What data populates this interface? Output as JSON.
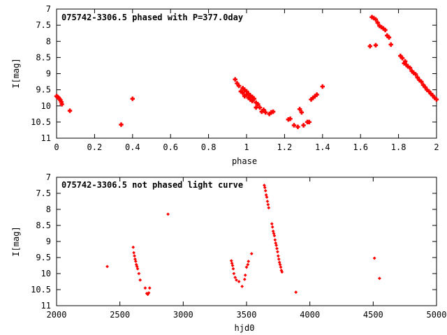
{
  "chart_data": [
    {
      "type": "scatter",
      "title": "075742-3306.5 phased with P=377.0day",
      "xlabel": "phase",
      "ylabel": "I[mag]",
      "xlim": [
        0,
        2
      ],
      "ylim": [
        7,
        11
      ],
      "y_inverted": true,
      "x_ticks": [
        "0",
        "0.2",
        "0.4",
        "0.6",
        "0.8",
        "1",
        "1.2",
        "1.4",
        "1.6",
        "1.8",
        "2"
      ],
      "y_ticks": [
        "7",
        "7.5",
        "8",
        "8.5",
        "9",
        "9.5",
        "10",
        "10.5",
        "11"
      ],
      "grid": false,
      "marker_color": "#ff0000",
      "series": [
        {
          "points": [
            [
              0.0,
              9.7
            ],
            [
              0.005,
              9.72
            ],
            [
              0.01,
              9.75
            ],
            [
              0.015,
              9.78
            ],
            [
              0.02,
              9.82
            ],
            [
              0.025,
              9.88
            ],
            [
              0.028,
              9.95
            ],
            [
              0.07,
              10.15
            ],
            [
              0.34,
              10.58
            ],
            [
              0.4,
              9.78
            ],
            [
              0.94,
              9.18
            ],
            [
              0.95,
              9.3
            ],
            [
              0.96,
              9.38
            ],
            [
              0.97,
              9.55
            ],
            [
              0.98,
              9.6
            ],
            [
              0.98,
              9.45
            ],
            [
              0.99,
              9.5
            ],
            [
              0.99,
              9.7
            ],
            [
              1.0,
              9.65
            ],
            [
              1.0,
              9.55
            ],
            [
              1.01,
              9.75
            ],
            [
              1.01,
              9.62
            ],
            [
              1.02,
              9.8
            ],
            [
              1.02,
              9.68
            ],
            [
              1.03,
              9.72
            ],
            [
              1.03,
              9.85
            ],
            [
              1.04,
              9.78
            ],
            [
              1.05,
              9.9
            ],
            [
              1.05,
              10.05
            ],
            [
              1.06,
              9.95
            ],
            [
              1.07,
              10.05
            ],
            [
              1.08,
              10.18
            ],
            [
              1.09,
              10.12
            ],
            [
              1.1,
              10.2
            ],
            [
              1.12,
              10.25
            ],
            [
              1.13,
              10.2
            ],
            [
              1.14,
              10.18
            ],
            [
              1.22,
              10.42
            ],
            [
              1.23,
              10.4
            ],
            [
              1.25,
              10.6
            ],
            [
              1.27,
              10.65
            ],
            [
              1.28,
              10.1
            ],
            [
              1.29,
              10.2
            ],
            [
              1.3,
              10.6
            ],
            [
              1.32,
              10.5
            ],
            [
              1.33,
              10.5
            ],
            [
              1.34,
              9.8
            ],
            [
              1.35,
              9.75
            ],
            [
              1.36,
              9.7
            ],
            [
              1.37,
              9.65
            ],
            [
              1.4,
              9.4
            ],
            [
              1.65,
              8.15
            ],
            [
              1.66,
              7.25
            ],
            [
              1.67,
              7.28
            ],
            [
              1.68,
              8.12
            ],
            [
              1.68,
              7.32
            ],
            [
              1.69,
              7.42
            ],
            [
              1.7,
              7.52
            ],
            [
              1.71,
              7.56
            ],
            [
              1.72,
              7.6
            ],
            [
              1.73,
              7.65
            ],
            [
              1.74,
              7.82
            ],
            [
              1.75,
              7.88
            ],
            [
              1.76,
              8.1
            ],
            [
              1.81,
              8.45
            ],
            [
              1.82,
              8.52
            ],
            [
              1.83,
              8.68
            ],
            [
              1.835,
              8.62
            ],
            [
              1.84,
              8.72
            ],
            [
              1.85,
              8.78
            ],
            [
              1.86,
              8.82
            ],
            [
              1.87,
              8.92
            ],
            [
              1.88,
              8.98
            ],
            [
              1.89,
              9.02
            ],
            [
              1.9,
              9.12
            ],
            [
              1.91,
              9.2
            ],
            [
              1.92,
              9.25
            ],
            [
              1.93,
              9.35
            ],
            [
              1.94,
              9.42
            ],
            [
              1.95,
              9.5
            ],
            [
              1.96,
              9.55
            ],
            [
              1.97,
              9.62
            ],
            [
              1.98,
              9.68
            ],
            [
              1.99,
              9.75
            ],
            [
              2.0,
              9.8
            ]
          ]
        }
      ]
    },
    {
      "type": "scatter",
      "title": "075742-3306.5 not phased light curve",
      "xlabel": "hjd0",
      "ylabel": "I[mag]",
      "xlim": [
        2000,
        5000
      ],
      "ylim": [
        7,
        11
      ],
      "y_inverted": true,
      "x_ticks": [
        "2000",
        "2500",
        "3000",
        "3500",
        "4000",
        "4500",
        "5000"
      ],
      "y_ticks": [
        "7",
        "7.5",
        "8",
        "8.5",
        "9",
        "9.5",
        "10",
        "10.5",
        "11"
      ],
      "grid": false,
      "marker_color": "#ff0000",
      "series": [
        {
          "points": [
            [
              2400,
              9.78
            ],
            [
              2605,
              9.18
            ],
            [
              2610,
              9.35
            ],
            [
              2615,
              9.45
            ],
            [
              2620,
              9.55
            ],
            [
              2625,
              9.62
            ],
            [
              2630,
              9.72
            ],
            [
              2635,
              9.78
            ],
            [
              2640,
              9.85
            ],
            [
              2650,
              10.0
            ],
            [
              2660,
              10.2
            ],
            [
              2700,
              10.45
            ],
            [
              2712,
              10.62
            ],
            [
              2720,
              10.65
            ],
            [
              2728,
              10.6
            ],
            [
              2735,
              10.45
            ],
            [
              2880,
              8.15
            ],
            [
              3380,
              9.6
            ],
            [
              3385,
              9.68
            ],
            [
              3390,
              9.75
            ],
            [
              3395,
              9.85
            ],
            [
              3400,
              10.0
            ],
            [
              3410,
              10.12
            ],
            [
              3420,
              10.2
            ],
            [
              3440,
              10.25
            ],
            [
              3465,
              10.4
            ],
            [
              3485,
              10.18
            ],
            [
              3490,
              10.05
            ],
            [
              3500,
              9.8
            ],
            [
              3510,
              9.72
            ],
            [
              3515,
              9.62
            ],
            [
              3540,
              9.38
            ],
            [
              3640,
              7.25
            ],
            [
              3645,
              7.32
            ],
            [
              3650,
              7.42
            ],
            [
              3655,
              7.55
            ],
            [
              3660,
              7.62
            ],
            [
              3665,
              7.75
            ],
            [
              3670,
              7.85
            ],
            [
              3675,
              7.95
            ],
            [
              3700,
              8.45
            ],
            [
              3705,
              8.55
            ],
            [
              3710,
              8.68
            ],
            [
              3715,
              8.75
            ],
            [
              3720,
              8.82
            ],
            [
              3725,
              8.95
            ],
            [
              3730,
              9.05
            ],
            [
              3735,
              9.12
            ],
            [
              3740,
              9.22
            ],
            [
              3745,
              9.32
            ],
            [
              3750,
              9.45
            ],
            [
              3755,
              9.55
            ],
            [
              3760,
              9.65
            ],
            [
              3765,
              9.72
            ],
            [
              3770,
              9.8
            ],
            [
              3775,
              9.9
            ],
            [
              3780,
              9.95
            ],
            [
              3890,
              10.58
            ],
            [
              4510,
              9.52
            ],
            [
              4550,
              10.15
            ]
          ]
        }
      ]
    }
  ]
}
